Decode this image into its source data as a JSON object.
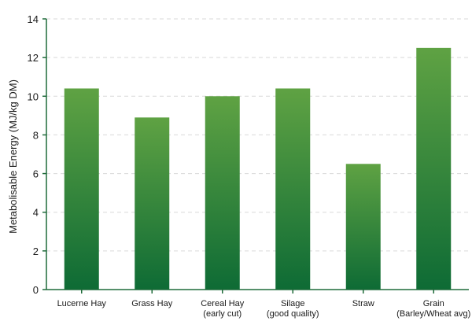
{
  "chart_data": {
    "type": "bar",
    "categories": [
      [
        "Lucerne Hay"
      ],
      [
        "Grass Hay"
      ],
      [
        "Cereal Hay",
        "(early cut)"
      ],
      [
        "Silage",
        "(good quality)"
      ],
      [
        "Straw"
      ],
      [
        "Grain",
        "(Barley/Wheat avg)"
      ]
    ],
    "values": [
      10.4,
      8.9,
      10.0,
      10.4,
      6.5,
      12.5
    ],
    "title": "",
    "xlabel": "",
    "ylabel": "Metabolisable Energy (MJ/kg DM)",
    "ylim": [
      0,
      14
    ],
    "yticks": [
      0,
      2,
      4,
      6,
      8,
      10,
      12,
      14
    ],
    "grid": true,
    "colors": {
      "bar_top": "#5fa243",
      "bar_bottom": "#0e6b35",
      "axis": "#1f6b3a",
      "grid": "#d9d9d9"
    }
  }
}
